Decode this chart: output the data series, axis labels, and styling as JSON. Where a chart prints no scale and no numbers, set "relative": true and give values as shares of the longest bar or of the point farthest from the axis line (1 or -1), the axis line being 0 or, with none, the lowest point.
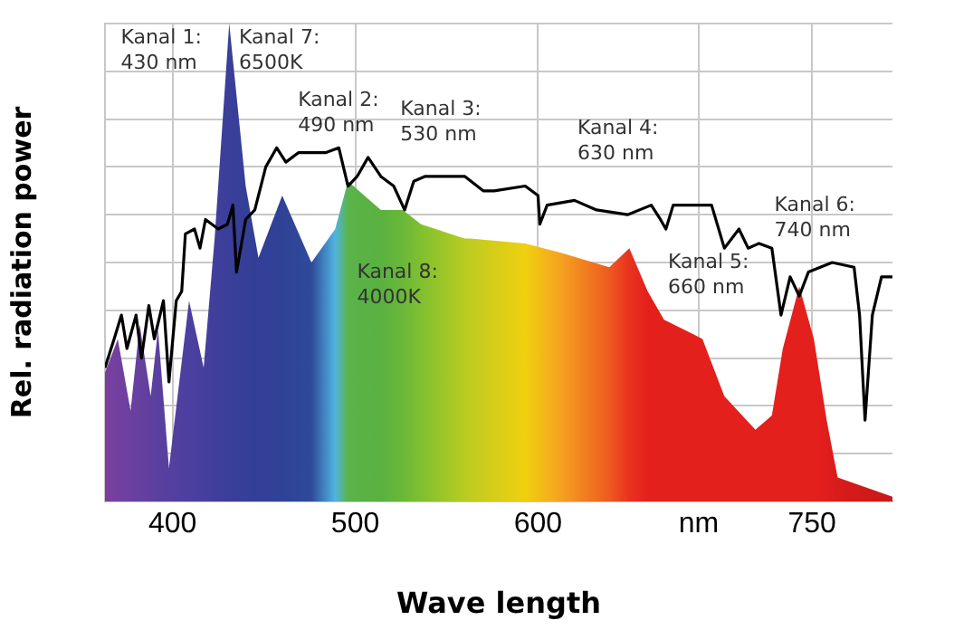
{
  "chart_data": {
    "type": "area",
    "relative": true,
    "xlabel": "Wave length",
    "ylabel": "Rel. radiation power",
    "xlim": [
      363,
      794
    ],
    "xticks": [
      400,
      500,
      600,
      {
        "value": 688,
        "label": "nm"
      },
      750
    ],
    "grid": true,
    "legend": false,
    "series": [
      {
        "type": "area",
        "x": [
          363,
          370,
          377,
          382,
          388,
          392,
          398,
          409,
          417,
          423,
          431,
          440,
          447,
          460,
          476,
          489,
          496,
          514,
          526,
          536,
          560,
          563,
          593,
          613,
          639,
          650,
          660,
          669,
          685,
          690,
          702,
          719,
          728,
          734,
          743,
          751,
          758,
          764,
          794
        ],
        "values": [
          0.27,
          0.34,
          0.19,
          0.37,
          0.22,
          0.36,
          0.07,
          0.42,
          0.28,
          0.55,
          1,
          0.66,
          0.51,
          0.64,
          0.5,
          0.57,
          0.67,
          0.61,
          0.61,
          0.58,
          0.55,
          0.55,
          0.54,
          0.52,
          0.49,
          0.53,
          0.44,
          0.38,
          0.35,
          0.34,
          0.22,
          0.15,
          0.18,
          0.32,
          0.45,
          0.34,
          0.17,
          0.05,
          0.01
        ],
        "colors": [
          "#7b3f9e",
          "#73409f",
          "#6b409f",
          "#66409f",
          "#5f409f",
          "#5a409f",
          "#55409f",
          "#4c3f9f",
          "#463f9d",
          "#403f9b",
          "#3a3f99",
          "#353f97",
          "#323f96",
          "#2f4296",
          "#2f4a9a",
          "#4fb4e0",
          "#5ab44a",
          "#5ab040",
          "#6ab838",
          "#80c030",
          "#b8cc20",
          "#c0cc20",
          "#f0d010",
          "#f5a020",
          "#ee5a20",
          "#e8321e",
          "#e4201c",
          "#e4201c",
          "#e4201c",
          "#e4201c",
          "#e4201c",
          "#e4201c",
          "#e4201c",
          "#e4201c",
          "#e4201c",
          "#e4201c",
          "#e01e1c",
          "#d81c1a",
          "#c81818"
        ]
      },
      {
        "type": "line",
        "color": "#000000",
        "x": [
          363,
          368,
          372,
          375,
          380,
          383,
          387,
          390,
          395,
          398,
          402,
          405,
          407,
          412,
          415,
          418,
          425,
          430,
          433,
          435,
          440,
          445,
          451,
          457,
          462,
          469,
          477,
          484,
          491,
          496,
          501,
          507,
          514,
          521,
          527,
          532,
          538,
          546,
          560,
          570,
          576,
          593,
          600,
          601,
          605,
          620,
          632,
          649,
          662,
          667,
          670,
          674,
          695,
          702,
          710,
          715,
          721,
          728,
          733,
          738,
          743,
          748,
          761,
          773,
          776,
          779,
          783,
          788,
          794
        ],
        "values": [
          0.28,
          0.34,
          0.39,
          0.32,
          0.39,
          0.3,
          0.41,
          0.34,
          0.42,
          0.25,
          0.42,
          0.44,
          0.56,
          0.57,
          0.53,
          0.59,
          0.57,
          0.58,
          0.62,
          0.48,
          0.59,
          0.61,
          0.7,
          0.74,
          0.71,
          0.73,
          0.73,
          0.73,
          0.74,
          0.66,
          0.68,
          0.72,
          0.68,
          0.66,
          0.61,
          0.67,
          0.68,
          0.68,
          0.68,
          0.65,
          0.65,
          0.66,
          0.64,
          0.58,
          0.62,
          0.63,
          0.61,
          0.6,
          0.62,
          0.59,
          0.57,
          0.62,
          0.62,
          0.53,
          0.57,
          0.53,
          0.54,
          0.53,
          0.39,
          0.47,
          0.43,
          0.48,
          0.5,
          0.49,
          0.39,
          0.17,
          0.39,
          0.47,
          0.47
        ]
      }
    ],
    "annotations": [
      "Kanal 1:\n430 nm",
      "Kanal 7:\n6500K",
      "Kanal 2:\n490 nm",
      "Kanal 3:\n530 nm",
      "Kanal 4:\n630 nm",
      "Kanal 8:\n4000K",
      "Kanal 5:\n660 nm",
      "Kanal 6:\n740 nm"
    ]
  }
}
